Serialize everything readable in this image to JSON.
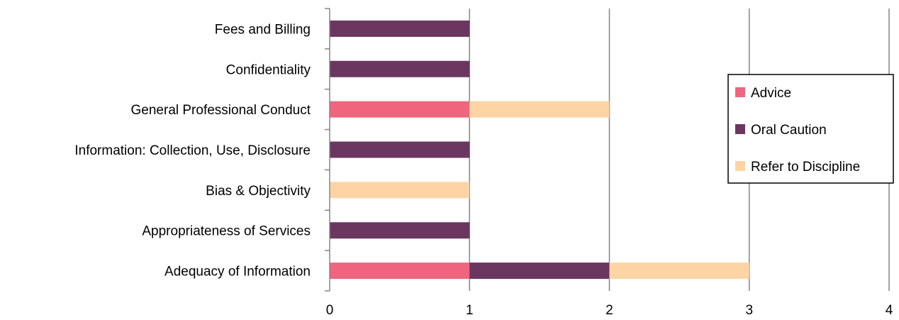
{
  "chart_data": {
    "type": "bar",
    "orientation": "horizontal",
    "stacked": true,
    "title": "",
    "xlabel": "",
    "ylabel": "",
    "categories": [
      "Adequacy of Information",
      "Appropriateness of Services",
      "Bias & Objectivity",
      "Information: Collection, Use, Disclosure",
      "General Professional Conduct",
      "Confidentiality",
      "Fees and Billing"
    ],
    "series": [
      {
        "name": "Advice",
        "color": "#f0657e",
        "values": [
          1,
          0,
          0,
          0,
          1,
          0,
          0
        ]
      },
      {
        "name": "Oral Caution",
        "color": "#6b3760",
        "values": [
          1,
          1,
          0,
          1,
          0,
          1,
          1
        ]
      },
      {
        "name": "Refer to Discipline",
        "color": "#fed4a5",
        "values": [
          1,
          0,
          1,
          0,
          1,
          0,
          0
        ]
      }
    ],
    "xlim": [
      0,
      4
    ],
    "xticks": [
      "0",
      "1",
      "2",
      "3",
      "4"
    ],
    "grid": true,
    "legend": "right"
  }
}
